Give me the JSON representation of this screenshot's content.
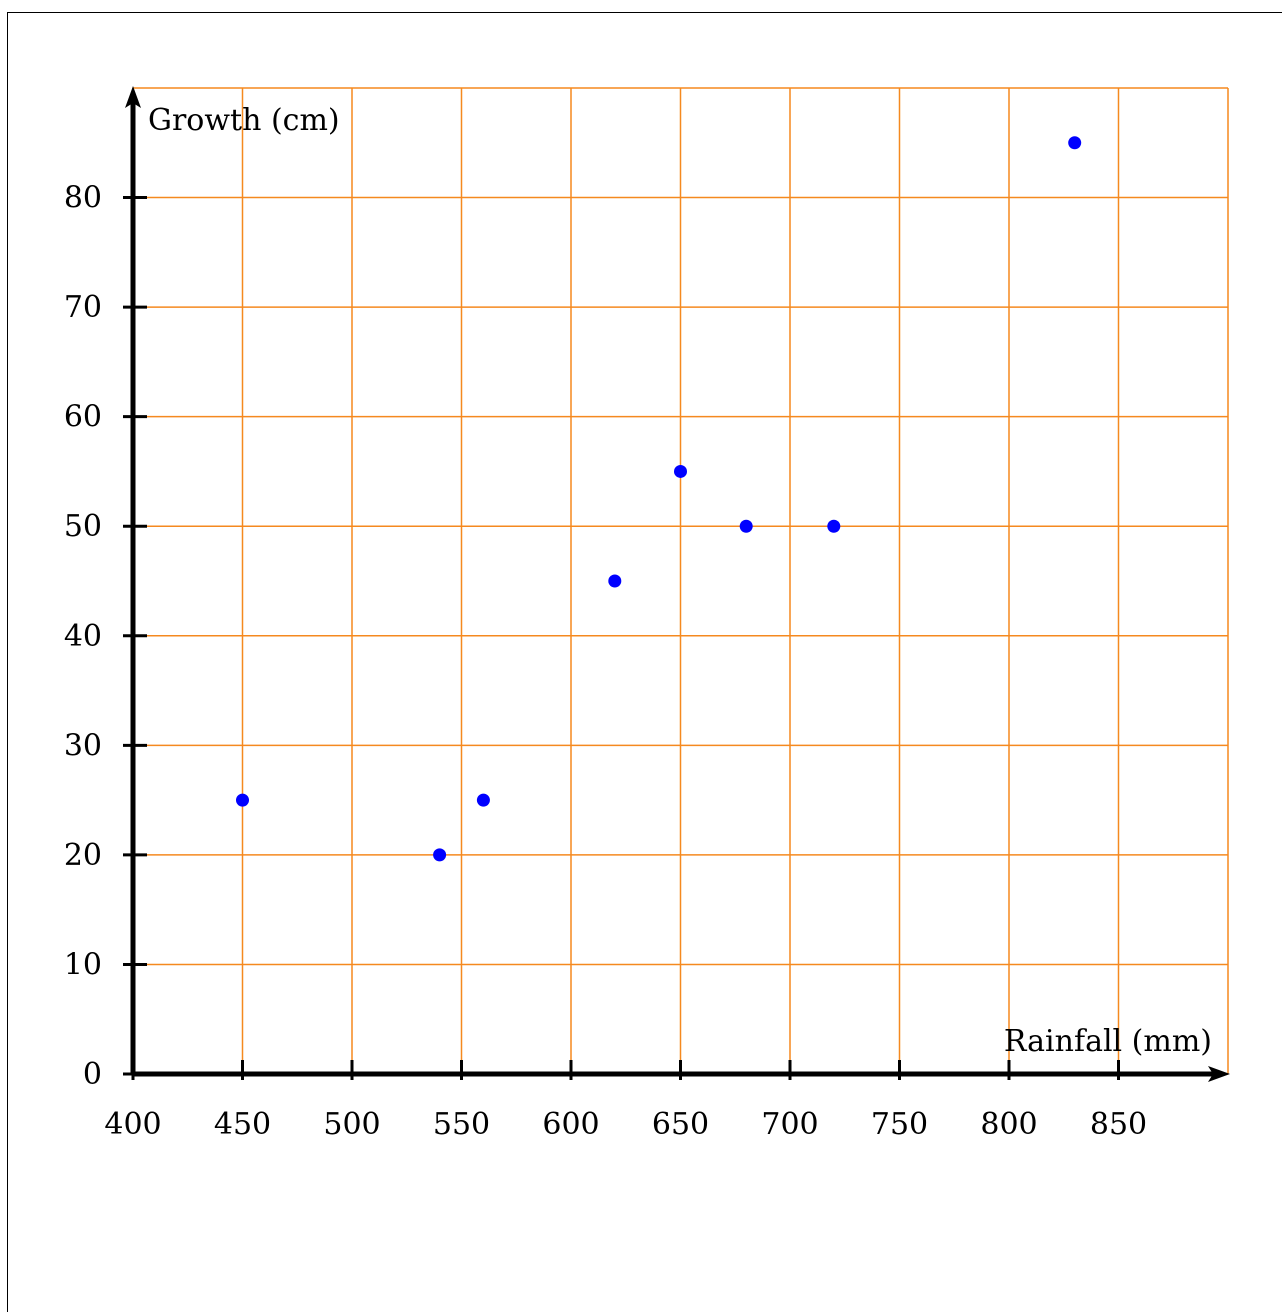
{
  "chart_data": {
    "type": "scatter",
    "title": "",
    "xlabel": "Rainfall (mm)",
    "ylabel": "Growth (cm)",
    "xlim": [
      400,
      900
    ],
    "ylim": [
      0,
      90
    ],
    "xticks": [
      400,
      450,
      500,
      550,
      600,
      650,
      700,
      750,
      800,
      850
    ],
    "yticks": [
      0,
      10,
      20,
      30,
      40,
      50,
      60,
      70,
      80
    ],
    "grid": true,
    "grid_color": "#f5891f",
    "point_color": "#0000ff",
    "points": [
      {
        "x": 450,
        "y": 25
      },
      {
        "x": 540,
        "y": 20
      },
      {
        "x": 560,
        "y": 25
      },
      {
        "x": 620,
        "y": 45
      },
      {
        "x": 650,
        "y": 55
      },
      {
        "x": 680,
        "y": 50
      },
      {
        "x": 720,
        "y": 50
      },
      {
        "x": 830,
        "y": 85
      }
    ]
  }
}
